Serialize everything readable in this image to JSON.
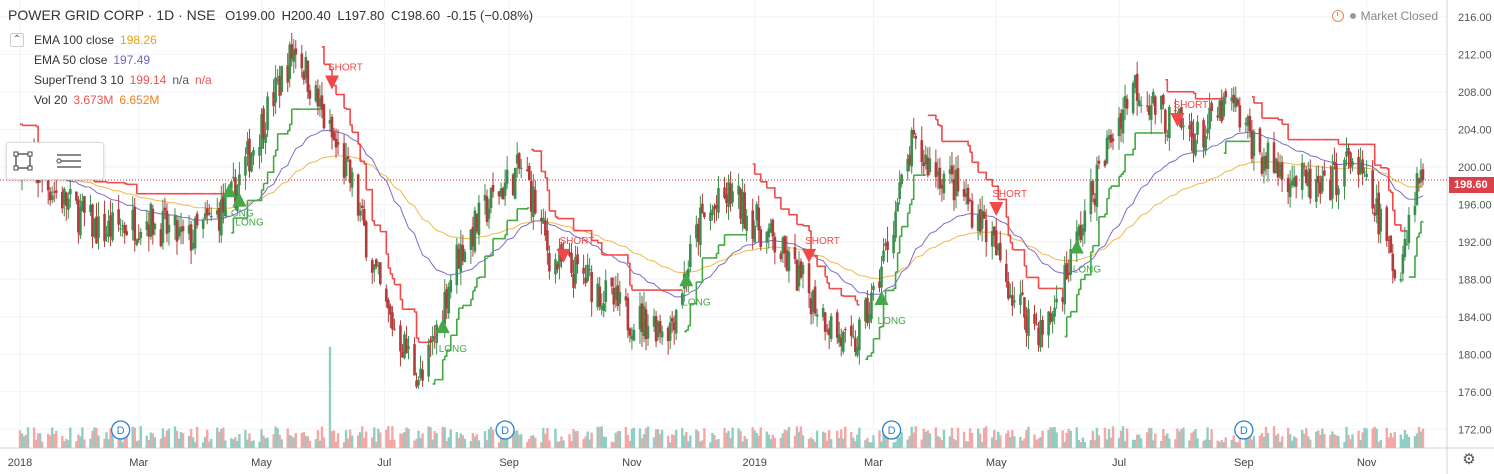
{
  "header": {
    "title": "POWER GRID CORP · 1D · NSE",
    "open": "O199.00",
    "high": "H200.40",
    "low": "L197.80",
    "close": "C198.60",
    "change": "-0.15 (−0.08%)"
  },
  "market_status": "Market Closed",
  "legend": [
    {
      "label": "EMA 100 close",
      "values": [
        "198.26"
      ],
      "color": "#e8a317"
    },
    {
      "label": "EMA 50 close",
      "values": [
        "197.49"
      ],
      "color": "#7b5fc6"
    },
    {
      "label": "SuperTrend 3 10",
      "values": [
        "199.14",
        "n/a",
        "n/a"
      ],
      "color": "#ef5350"
    },
    {
      "label": "Vol 20",
      "values": [
        "3.673M",
        "6.652M"
      ],
      "color": "#f57f17"
    }
  ],
  "price_tag": "198.60",
  "colors": {
    "up": "#3b8f4e",
    "down": "#b23a3a",
    "st_up": "#43a845",
    "st_down": "#f24848",
    "ema100": "#f2b84b",
    "ema50": "#7e6cc9",
    "price_line": "#c62828",
    "vol_up": "#8ecfc3",
    "vol_down": "#f3a7a7",
    "dividend": "#2a7fd4"
  },
  "toolbar_icons": [
    "rectangle-tool-icon",
    "horizontal-lines-icon"
  ],
  "chart_data": {
    "type": "candlestick",
    "title": "POWER GRID CORP · 1D · NSE",
    "y_axis": {
      "ticks": [
        172,
        176,
        180,
        184,
        188,
        192,
        196,
        200,
        204,
        208,
        212,
        216
      ],
      "range": [
        170,
        217.8
      ],
      "position": "right"
    },
    "x_axis": {
      "ticks": [
        "2018",
        "Mar",
        "May",
        "Jul",
        "Sep",
        "Nov",
        "2019",
        "Mar",
        "May",
        "Jul",
        "Sep",
        "Nov"
      ],
      "start": "2018-01-01",
      "end": "2019-11-30"
    },
    "last_close": 198.6,
    "anchors": [
      [
        "2018-01-01",
        201
      ],
      [
        "2018-01-20",
        197
      ],
      [
        "2018-02-10",
        193
      ],
      [
        "2018-03-05",
        194.5
      ],
      [
        "2018-03-25",
        192
      ],
      [
        "2018-04-15",
        196
      ],
      [
        "2018-04-30",
        204
      ],
      [
        "2018-05-18",
        213
      ],
      [
        "2018-06-01",
        205
      ],
      [
        "2018-06-15",
        198
      ],
      [
        "2018-07-01",
        185
      ],
      [
        "2018-07-20",
        177
      ],
      [
        "2018-08-05",
        190
      ],
      [
        "2018-08-25",
        197
      ],
      [
        "2018-09-08",
        200
      ],
      [
        "2018-09-22",
        190
      ],
      [
        "2018-10-10",
        188
      ],
      [
        "2018-10-30",
        184
      ],
      [
        "2018-11-20",
        183
      ],
      [
        "2018-12-05",
        194
      ],
      [
        "2018-12-20",
        197
      ],
      [
        "2019-01-10",
        192
      ],
      [
        "2019-01-30",
        186
      ],
      [
        "2019-02-18",
        180
      ],
      [
        "2019-03-01",
        186
      ],
      [
        "2019-03-20",
        202
      ],
      [
        "2019-04-10",
        198
      ],
      [
        "2019-04-25",
        194
      ],
      [
        "2019-05-10",
        186
      ],
      [
        "2019-05-25",
        182
      ],
      [
        "2019-06-10",
        192
      ],
      [
        "2019-06-25",
        202
      ],
      [
        "2019-07-08",
        209
      ],
      [
        "2019-07-25",
        205
      ],
      [
        "2019-08-10",
        203
      ],
      [
        "2019-08-25",
        207
      ],
      [
        "2019-09-10",
        201
      ],
      [
        "2019-09-25",
        199
      ],
      [
        "2019-10-10",
        197
      ],
      [
        "2019-10-25",
        201
      ],
      [
        "2019-11-08",
        194
      ],
      [
        "2019-11-16",
        188
      ],
      [
        "2019-11-26",
        198.6
      ]
    ],
    "series": [
      {
        "name": "SuperTrend 3 10",
        "values_note": "stepwise trailing stop"
      },
      {
        "name": "EMA 100 close"
      },
      {
        "name": "EMA 50 close"
      },
      {
        "name": "Vol 20"
      }
    ],
    "signals": [
      {
        "type": "LONG",
        "date": "2018-04-20",
        "price": 196.5
      },
      {
        "type": "SHORT",
        "date": "2018-06-05",
        "price": 209
      },
      {
        "type": "LONG",
        "date": "2018-07-30",
        "price": 183
      },
      {
        "type": "SHORT",
        "date": "2018-09-28",
        "price": 190.5
      },
      {
        "type": "LONG",
        "date": "2018-11-28",
        "price": 188
      },
      {
        "type": "SHORT",
        "date": "2019-01-28",
        "price": 190.5
      },
      {
        "type": "LONG",
        "date": "2019-03-05",
        "price": 186
      },
      {
        "type": "SHORT",
        "date": "2019-05-01",
        "price": 195.5
      },
      {
        "type": "LONG",
        "date": "2019-06-10",
        "price": 191.5
      },
      {
        "type": "SHORT",
        "date": "2019-07-30",
        "price": 205
      },
      {
        "type": "LONG",
        "date": "2018-04-15",
        "price": 197.5
      }
    ],
    "dividends": [
      {
        "label": "D",
        "date": "2018-02-20"
      },
      {
        "label": "D",
        "date": "2018-08-30"
      },
      {
        "label": "D",
        "date": "2019-03-10"
      },
      {
        "label": "D",
        "date": "2019-09-01"
      }
    ],
    "grid": true
  }
}
